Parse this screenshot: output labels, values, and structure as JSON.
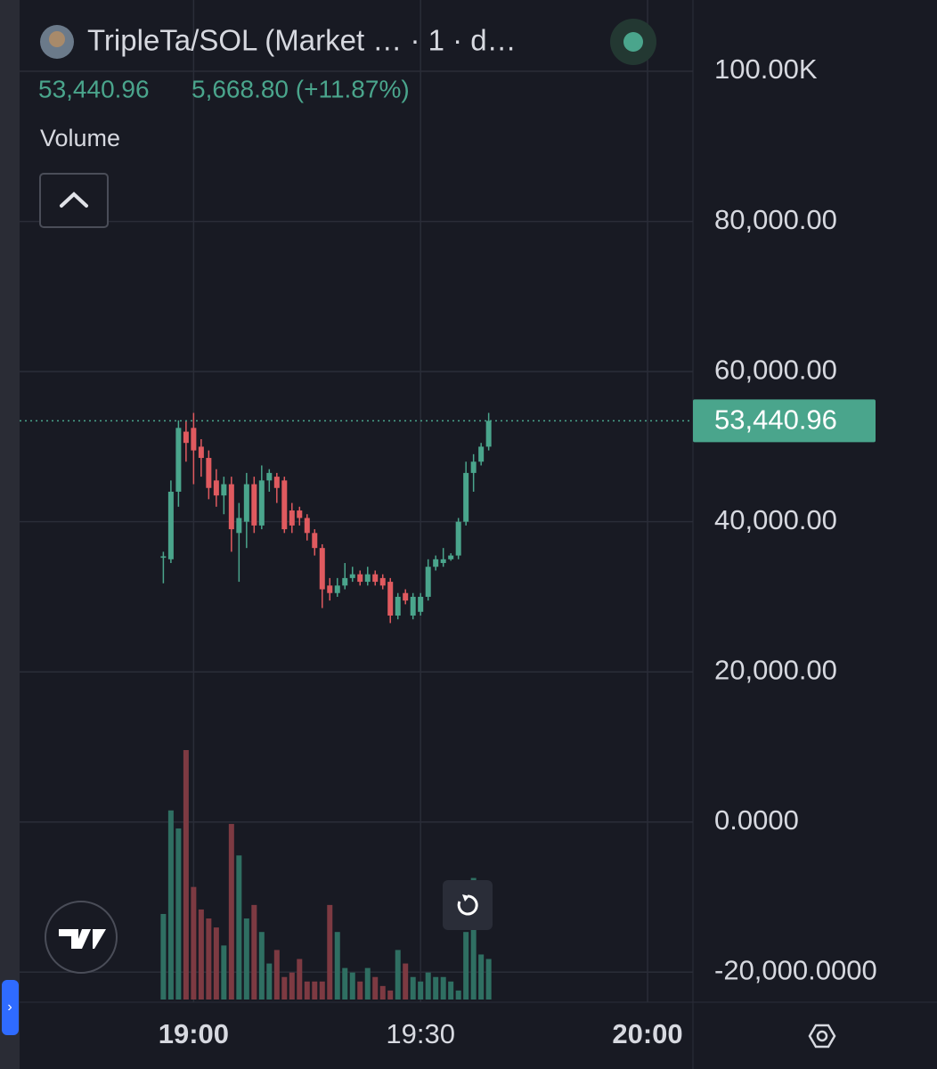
{
  "header": {
    "symbol": "TripleTa/SOL (Market … · 1 · d…",
    "last": "53,440.96",
    "change": "5,668.80 (+11.87%)",
    "indicator": "Volume"
  },
  "chart_data": {
    "type": "candlestick",
    "x": [
      "18:56",
      "18:57",
      "18:58",
      "18:59",
      "19:00",
      "19:01",
      "19:02",
      "19:03",
      "19:04",
      "19:05",
      "19:06",
      "19:07",
      "19:08",
      "19:09",
      "19:10",
      "19:11",
      "19:12",
      "19:13",
      "19:14",
      "19:15",
      "19:16",
      "19:17",
      "19:18",
      "19:19",
      "19:20",
      "19:21",
      "19:22",
      "19:23",
      "19:24",
      "19:25",
      "19:26",
      "19:27",
      "19:28",
      "19:29",
      "19:30",
      "19:31",
      "19:32",
      "19:33",
      "19:34",
      "19:35",
      "19:36",
      "19:37",
      "19:38",
      "19:39"
    ],
    "open": [
      35200,
      35000,
      44000,
      52000,
      52500,
      50000,
      48500,
      45500,
      43500,
      45000,
      38500,
      40000,
      45000,
      39500,
      45500,
      46000,
      45500,
      41500,
      41500,
      40500,
      38500,
      36500,
      31500,
      30500,
      31500,
      32500,
      33000,
      32000,
      33000,
      32500,
      32000,
      27500,
      30500,
      27500,
      28000,
      30000,
      34000,
      34500,
      35000,
      35500,
      40000,
      46500,
      48000,
      50000
    ],
    "high": [
      36000,
      45500,
      53500,
      53500,
      54500,
      51000,
      49500,
      47000,
      46000,
      46000,
      42500,
      46500,
      46000,
      47500,
      47000,
      46500,
      46000,
      42500,
      42000,
      41000,
      39000,
      37000,
      32500,
      32500,
      34500,
      34000,
      33500,
      34000,
      33500,
      33000,
      32500,
      30500,
      31000,
      30500,
      30500,
      35000,
      35500,
      36500,
      35800,
      40500,
      48000,
      49000,
      50500,
      54500
    ],
    "low": [
      31800,
      34500,
      42000,
      48000,
      45000,
      46000,
      43000,
      42000,
      41000,
      36000,
      32000,
      36500,
      38500,
      39000,
      44000,
      42500,
      38500,
      38500,
      39500,
      37500,
      35500,
      28500,
      29500,
      30000,
      31000,
      32000,
      31500,
      31500,
      31500,
      31000,
      26500,
      27000,
      29000,
      27000,
      27500,
      29500,
      33500,
      34000,
      34800,
      35000,
      39500,
      44000,
      47500,
      49500
    ],
    "close": [
      35400,
      44000,
      52500,
      50500,
      49500,
      48500,
      44500,
      43500,
      45000,
      39000,
      40500,
      45000,
      39500,
      45500,
      46500,
      44500,
      39000,
      39500,
      40500,
      38500,
      36500,
      31000,
      30500,
      31500,
      32500,
      33000,
      32000,
      33000,
      32000,
      31500,
      27500,
      30000,
      29500,
      30000,
      30000,
      34000,
      35000,
      35000,
      35500,
      40000,
      46500,
      48000,
      50000,
      53440.96
    ],
    "volume": [
      95,
      210,
      190,
      277,
      125,
      100,
      90,
      80,
      60,
      195,
      160,
      90,
      105,
      75,
      40,
      55,
      25,
      30,
      45,
      20,
      20,
      20,
      105,
      75,
      35,
      30,
      20,
      35,
      25,
      15,
      10,
      55,
      40,
      25,
      20,
      30,
      25,
      25,
      20,
      10,
      75,
      135,
      50,
      45
    ],
    "last_value_label": "53,440.96",
    "up_color": "#4aa58c",
    "down_color": "#e05a5f",
    "volume_up_color": "#2f6f62",
    "volume_down_color": "#7d3a42",
    "xlim": [
      "18:37",
      "20:06"
    ],
    "xticks": [
      "19:00",
      "19:30",
      "20:00"
    ],
    "ylim": [
      -24000,
      109500
    ],
    "yticks": [
      {
        "value": -20000,
        "label": "-20,000.0000"
      },
      {
        "value": 0,
        "label": "0.0000"
      },
      {
        "value": 20000,
        "label": "20,000.00"
      },
      {
        "value": 40000,
        "label": "40,000.00"
      },
      {
        "value": 60000,
        "label": "60,000.00"
      },
      {
        "value": 80000,
        "label": "80,000.00"
      },
      {
        "value": 100000,
        "label": "100.00K"
      }
    ],
    "grid": true
  }
}
